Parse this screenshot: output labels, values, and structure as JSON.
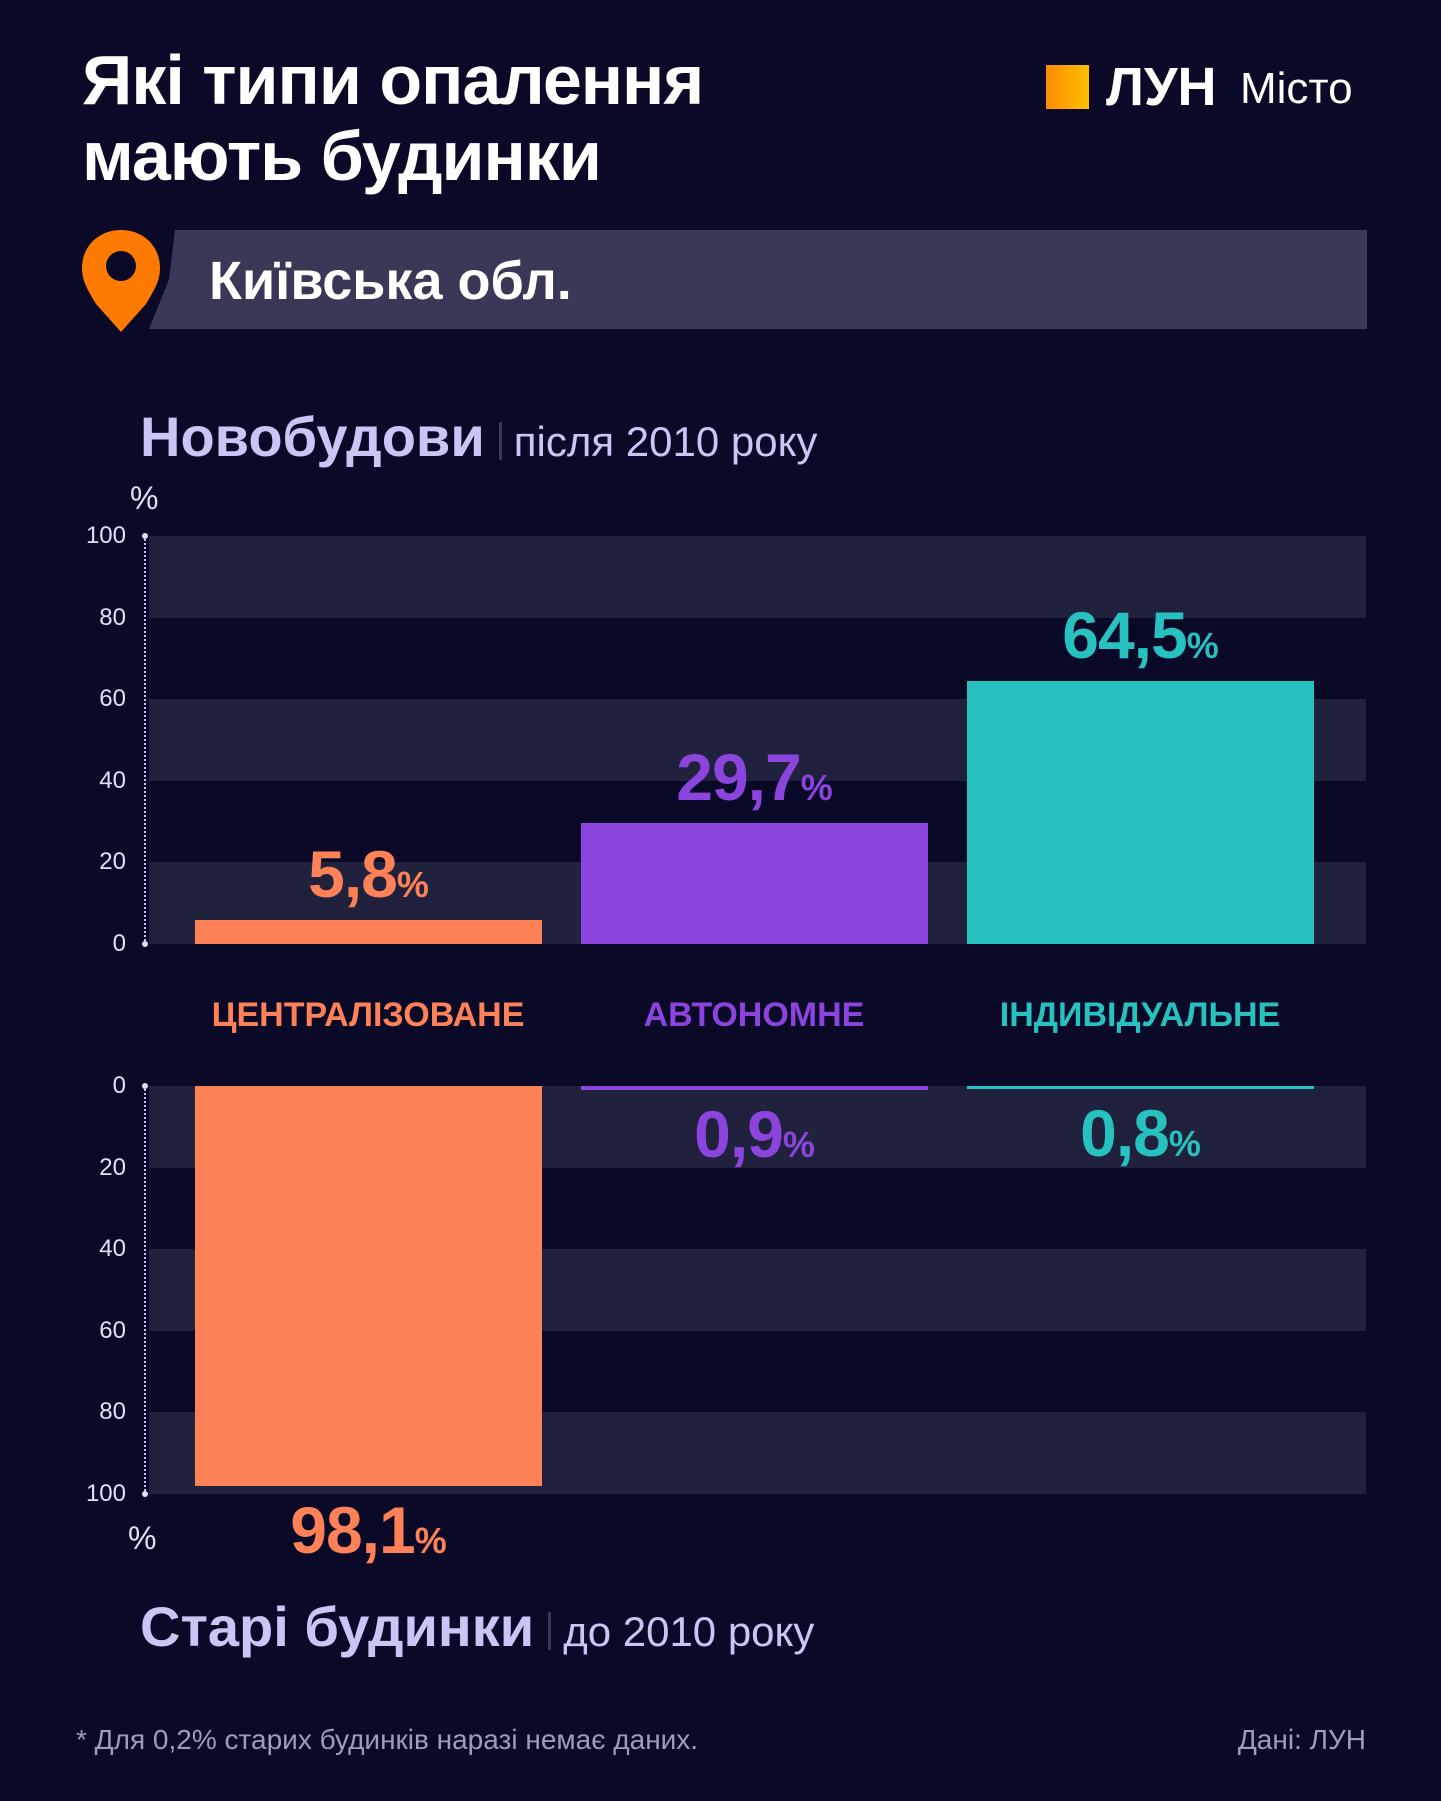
{
  "header": {
    "title_line1": "Які типи опалення",
    "title_line2": "мають будинки",
    "logo_main": "ЛУН",
    "logo_sub": "Місто",
    "region": "Київська обл."
  },
  "colors": {
    "background": "#0a0a28",
    "centralized": "#ff8157",
    "autonomous": "#8b44dd",
    "individual": "#27c1c0",
    "heading": "#c8c6f5"
  },
  "chart_data": [
    {
      "type": "bar",
      "title": "Новобудови",
      "subtitle": "після 2010 року",
      "ylabel": "%",
      "ylim": [
        0,
        100
      ],
      "yticks": [
        "0",
        "20",
        "40",
        "60",
        "80",
        "100"
      ],
      "categories": [
        "ЦЕНТРАЛІЗОВАНЕ",
        "АВТОНОМНЕ",
        "ІНДИВІДУАЛЬНЕ"
      ],
      "values": [
        5.8,
        29.7,
        64.5
      ],
      "labels": [
        "5,8",
        "29,7",
        "64,5"
      ],
      "unit": "%"
    },
    {
      "type": "bar",
      "title": "Старі будинки",
      "subtitle": "до 2010 року",
      "ylabel": "%",
      "ylim": [
        0,
        100
      ],
      "orientation": "downward",
      "yticks": [
        "0",
        "20",
        "40",
        "60",
        "80",
        "100"
      ],
      "categories": [
        "ЦЕНТРАЛІЗОВАНЕ",
        "АВТОНОМНЕ",
        "ІНДИВІДУАЛЬНЕ"
      ],
      "values": [
        98.1,
        0.9,
        0.8
      ],
      "labels": [
        "98,1",
        "0,9",
        "0,8"
      ],
      "unit": "%"
    }
  ],
  "footer": {
    "note": "* Для 0,2% старих будинків наразі немає даних.",
    "source": "Дані: ЛУН"
  }
}
